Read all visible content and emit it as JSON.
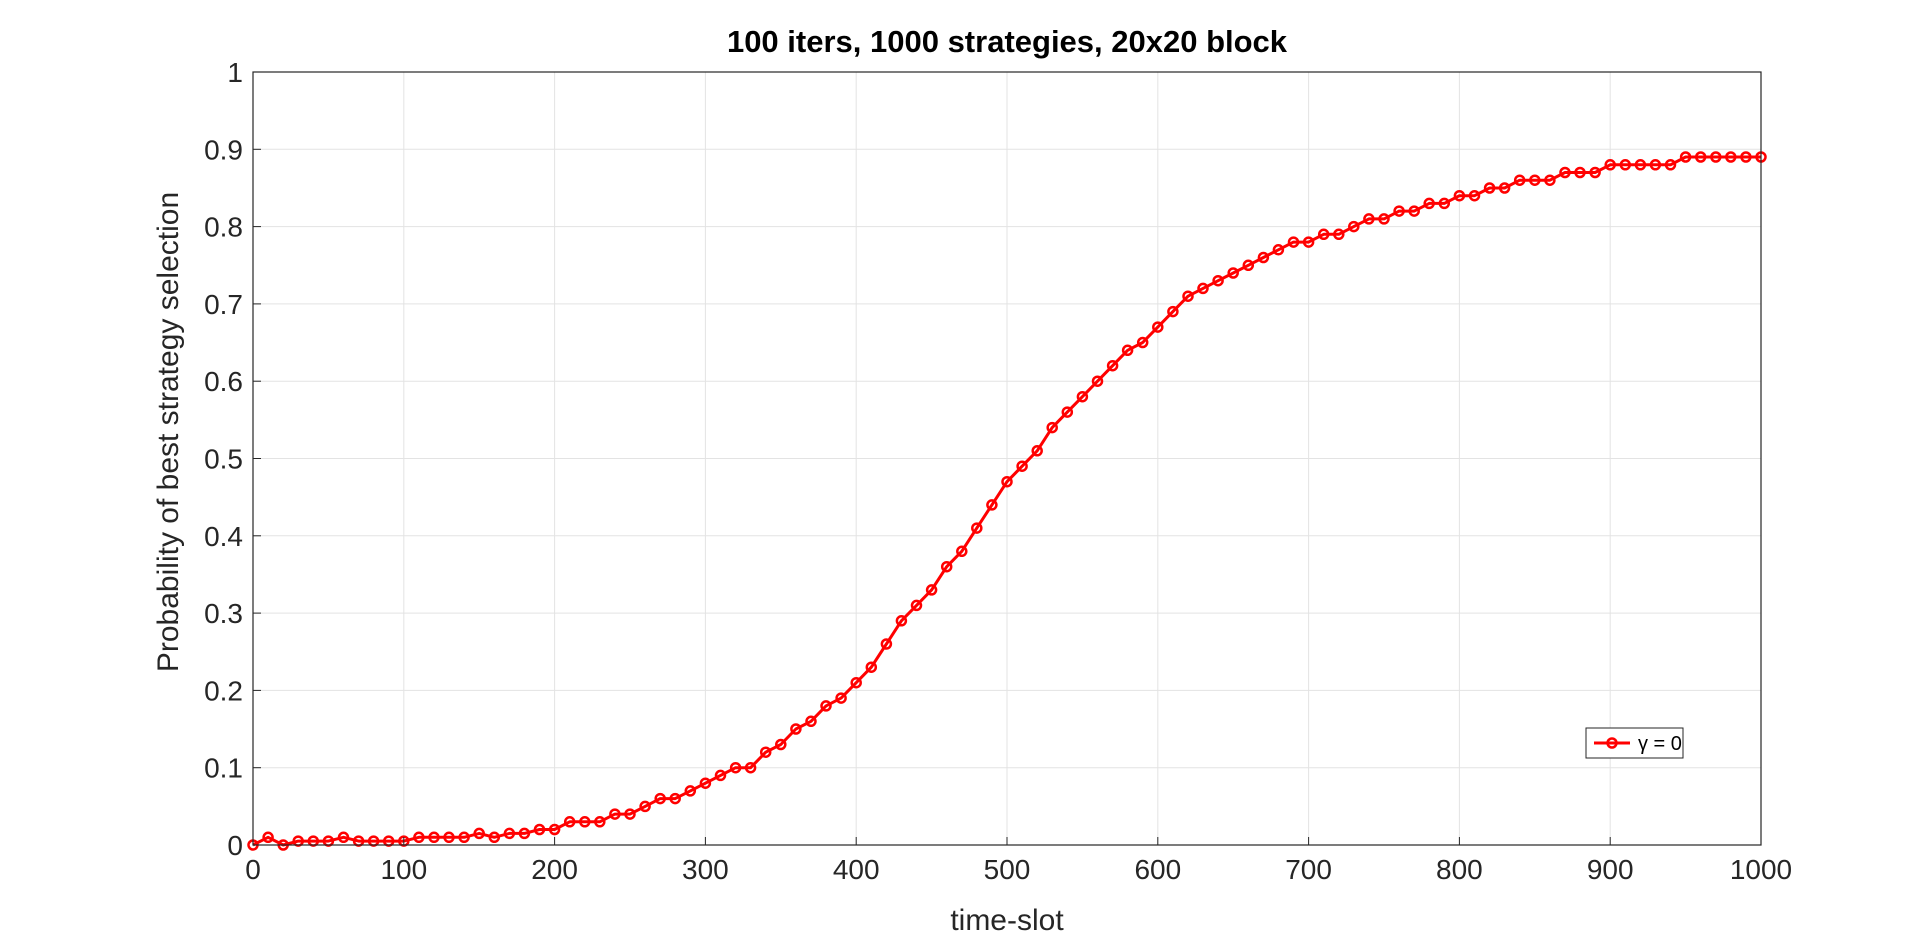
{
  "chart_data": {
    "type": "line",
    "title": "100 iters, 1000 strategies, 20x20 block",
    "xlabel": "time-slot",
    "ylabel": "Probability of best strategy selection",
    "xlim": [
      0,
      1000
    ],
    "ylim": [
      0,
      1
    ],
    "x_ticks": [
      "0",
      "100",
      "200",
      "300",
      "400",
      "500",
      "600",
      "700",
      "800",
      "900",
      "1000"
    ],
    "y_ticks": [
      "0",
      "0.1",
      "0.2",
      "0.3",
      "0.4",
      "0.5",
      "0.6",
      "0.7",
      "0.8",
      "0.9",
      "1"
    ],
    "grid": true,
    "legend_position": "bottom-right",
    "marker": "circle",
    "series": [
      {
        "name": "γ = 0",
        "color": "#ff0000",
        "x": [
          0,
          10,
          20,
          30,
          40,
          50,
          60,
          70,
          80,
          90,
          100,
          110,
          120,
          130,
          140,
          150,
          160,
          170,
          180,
          190,
          200,
          210,
          220,
          230,
          240,
          250,
          260,
          270,
          280,
          290,
          300,
          310,
          320,
          330,
          340,
          350,
          360,
          370,
          380,
          390,
          400,
          410,
          420,
          430,
          440,
          450,
          460,
          470,
          480,
          490,
          500,
          510,
          520,
          530,
          540,
          550,
          560,
          570,
          580,
          590,
          600,
          610,
          620,
          630,
          640,
          650,
          660,
          670,
          680,
          690,
          700,
          710,
          720,
          730,
          740,
          750,
          760,
          770,
          780,
          790,
          800,
          810,
          820,
          830,
          840,
          850,
          860,
          870,
          880,
          890,
          900,
          910,
          920,
          930,
          940,
          950,
          960,
          970,
          980,
          990,
          1000
        ],
        "y": [
          0,
          0.01,
          0,
          0.005,
          0.005,
          0.005,
          0.01,
          0.005,
          0.005,
          0.005,
          0.005,
          0.01,
          0.01,
          0.01,
          0.01,
          0.015,
          0.01,
          0.015,
          0.015,
          0.02,
          0.02,
          0.03,
          0.03,
          0.03,
          0.04,
          0.04,
          0.05,
          0.06,
          0.06,
          0.07,
          0.08,
          0.09,
          0.1,
          0.1,
          0.12,
          0.13,
          0.15,
          0.16,
          0.18,
          0.19,
          0.21,
          0.23,
          0.26,
          0.29,
          0.31,
          0.33,
          0.36,
          0.38,
          0.41,
          0.44,
          0.47,
          0.49,
          0.51,
          0.54,
          0.56,
          0.58,
          0.6,
          0.62,
          0.64,
          0.65,
          0.67,
          0.69,
          0.71,
          0.72,
          0.73,
          0.74,
          0.75,
          0.76,
          0.77,
          0.78,
          0.78,
          0.79,
          0.79,
          0.8,
          0.81,
          0.81,
          0.82,
          0.82,
          0.83,
          0.83,
          0.84,
          0.84,
          0.85,
          0.85,
          0.86,
          0.86,
          0.86,
          0.87,
          0.87,
          0.87,
          0.88,
          0.88,
          0.88,
          0.88,
          0.88,
          0.89,
          0.89,
          0.89,
          0.89,
          0.89,
          0.89
        ]
      }
    ]
  }
}
